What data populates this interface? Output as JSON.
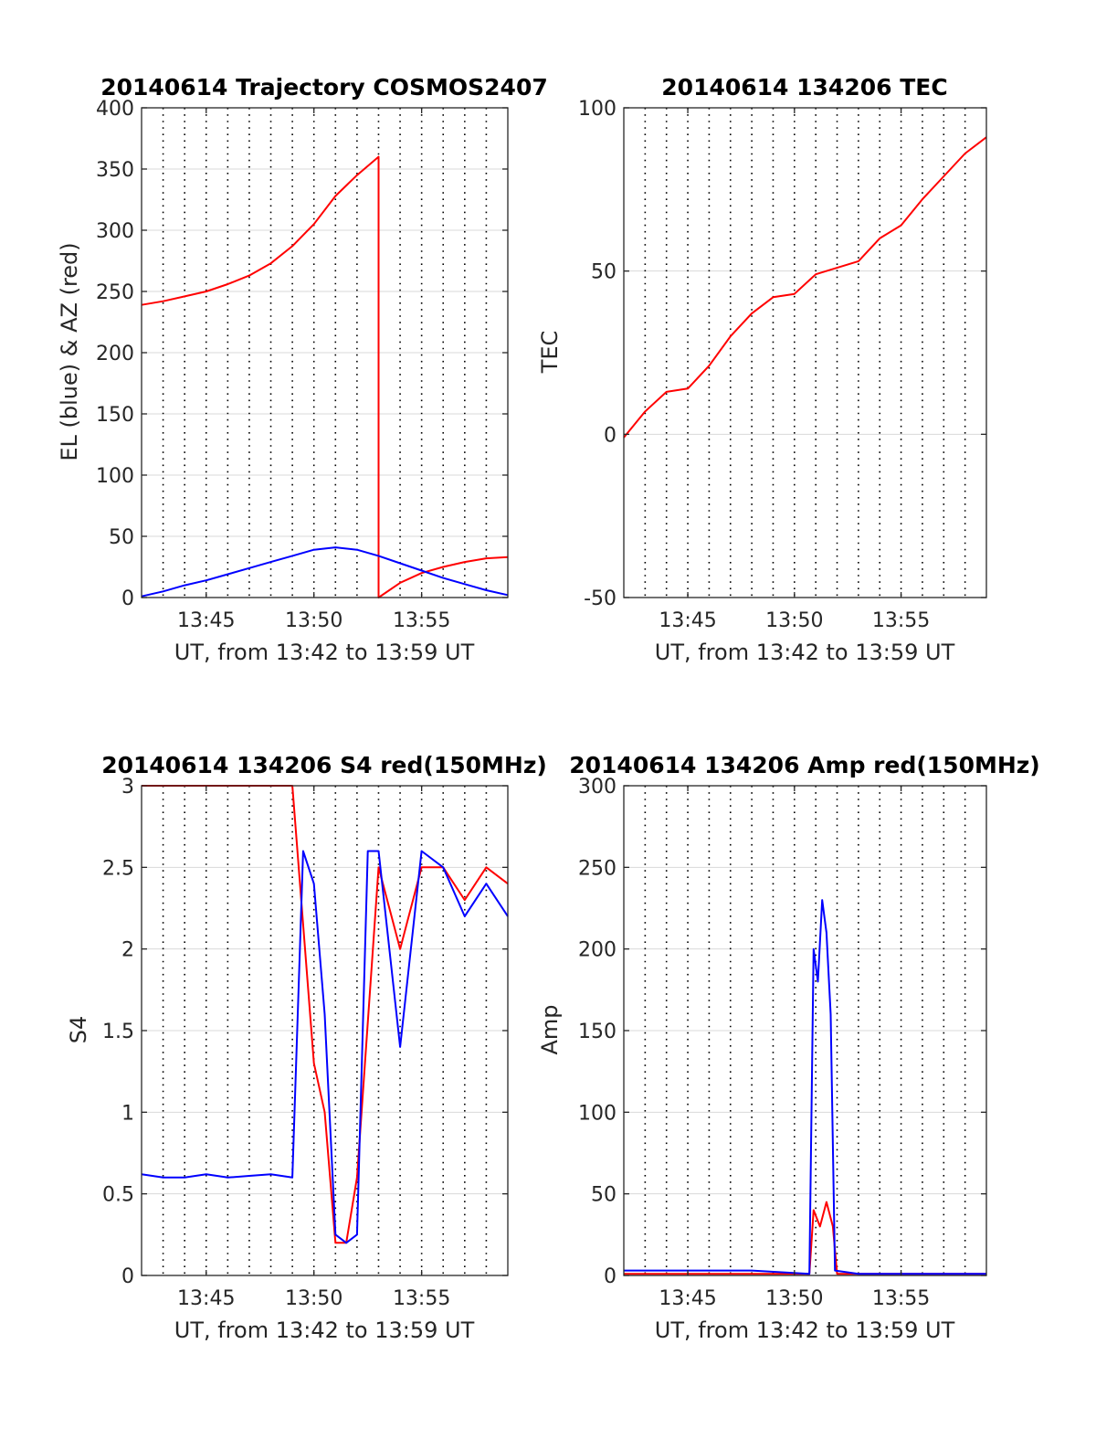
{
  "figure": {
    "colors": {
      "red": "#ff0000",
      "blue": "#0000ff",
      "axis": "#262626",
      "grid": "#d9d9d9",
      "vgrid": "#000000"
    }
  },
  "chart_data": [
    {
      "type": "line",
      "title": "20140614 Trajectory COSMOS2407",
      "xlabel": "UT, from 13:42 to 13:59 UT",
      "ylabel": "EL (blue) & AZ (red)",
      "xlim": [
        "13:42",
        "13:59"
      ],
      "ylim": [
        0,
        400
      ],
      "x_ticks": [
        "13:45",
        "13:50",
        "13:55"
      ],
      "y_ticks": [
        "0",
        "50",
        "100",
        "150",
        "200",
        "250",
        "300",
        "350",
        "400"
      ],
      "grid": true,
      "series": [
        {
          "color": "red",
          "x": [
            "13:42",
            "13:43",
            "13:44",
            "13:45",
            "13:46",
            "13:47",
            "13:48",
            "13:49",
            "13:50",
            "13:51",
            "13:52",
            "13:53",
            "13:53",
            "13:54",
            "13:55",
            "13:56",
            "13:57",
            "13:58",
            "13:59"
          ],
          "y": [
            239,
            242,
            246,
            250,
            256,
            263,
            273,
            287,
            305,
            328,
            345,
            360,
            0,
            12,
            20,
            25,
            29,
            32,
            33
          ]
        },
        {
          "color": "blue",
          "x": [
            "13:42",
            "13:43",
            "13:44",
            "13:45",
            "13:46",
            "13:47",
            "13:48",
            "13:49",
            "13:50",
            "13:51",
            "13:52",
            "13:53",
            "13:54",
            "13:55",
            "13:56",
            "13:57",
            "13:58",
            "13:59"
          ],
          "y": [
            1,
            5,
            10,
            14,
            19,
            24,
            29,
            34,
            39,
            41,
            39,
            34,
            28,
            22,
            16,
            11,
            6,
            2
          ]
        }
      ]
    },
    {
      "type": "line",
      "title": "20140614 134206 TEC",
      "xlabel": "UT, from 13:42 to 13:59 UT",
      "ylabel": "TEC",
      "xlim": [
        "13:42",
        "13:59"
      ],
      "ylim": [
        -50,
        100
      ],
      "x_ticks": [
        "13:45",
        "13:50",
        "13:55"
      ],
      "y_ticks": [
        "-50",
        "0",
        "50",
        "100"
      ],
      "grid": true,
      "series": [
        {
          "color": "red",
          "x": [
            "13:42",
            "13:43",
            "13:44",
            "13:45",
            "13:46",
            "13:47",
            "13:48",
            "13:49",
            "13:50",
            "13:51",
            "13:52",
            "13:53",
            "13:54",
            "13:55",
            "13:56",
            "13:57",
            "13:58",
            "13:59"
          ],
          "y": [
            -1,
            7,
            13,
            14,
            21,
            30,
            37,
            42,
            43,
            49,
            51,
            53,
            60,
            64,
            72,
            79,
            86,
            91
          ]
        }
      ]
    },
    {
      "type": "line",
      "title": "20140614 134206 S4 red(150MHz)",
      "xlabel": "UT, from 13:42 to 13:59 UT",
      "ylabel": "S4",
      "xlim": [
        "13:42",
        "13:59"
      ],
      "ylim": [
        0,
        3
      ],
      "x_ticks": [
        "13:45",
        "13:50",
        "13:55"
      ],
      "y_ticks": [
        "0",
        "0.5",
        "1",
        "1.5",
        "2",
        "2.5",
        "3"
      ],
      "grid": true,
      "series": [
        {
          "color": "red",
          "x": [
            "13:42",
            "13:43",
            "13:44",
            "13:45",
            "13:46",
            "13:47",
            "13:48",
            "13:49",
            "13:50",
            "13:50.5",
            "13:51",
            "13:51.5",
            "13:52",
            "13:53",
            "13:54",
            "13:55",
            "13:56",
            "13:57",
            "13:58",
            "13:59"
          ],
          "y": [
            3,
            3,
            3,
            3,
            3,
            3,
            3,
            3,
            1.3,
            1.0,
            0.2,
            0.2,
            0.6,
            2.5,
            2.0,
            2.5,
            2.5,
            2.3,
            2.5,
            2.4
          ]
        },
        {
          "color": "blue",
          "x": [
            "13:42",
            "13:43",
            "13:44",
            "13:45",
            "13:46",
            "13:47",
            "13:48",
            "13:49",
            "13:49.5",
            "13:50",
            "13:50.5",
            "13:51",
            "13:51.5",
            "13:52",
            "13:52.5",
            "13:53",
            "13:54",
            "13:55",
            "13:56",
            "13:57",
            "13:58",
            "13:59"
          ],
          "y": [
            0.62,
            0.6,
            0.6,
            0.62,
            0.6,
            0.61,
            0.62,
            0.6,
            2.6,
            2.4,
            1.6,
            0.25,
            0.2,
            0.25,
            2.6,
            2.6,
            1.4,
            2.6,
            2.5,
            2.2,
            2.4,
            2.2
          ]
        }
      ]
    },
    {
      "type": "line",
      "title": "20140614 134206 Amp red(150MHz)",
      "xlabel": "UT, from 13:42 to 13:59 UT",
      "ylabel": "Amp",
      "xlim": [
        "13:42",
        "13:59"
      ],
      "ylim": [
        0,
        300
      ],
      "x_ticks": [
        "13:45",
        "13:50",
        "13:55"
      ],
      "y_ticks": [
        "0",
        "50",
        "100",
        "150",
        "200",
        "250",
        "300"
      ],
      "grid": true,
      "series": [
        {
          "color": "red",
          "x": [
            "13:42",
            "13:46",
            "13:50.7",
            "13:50.9",
            "13:51.2",
            "13:51.5",
            "13:51.8",
            "13:52",
            "13:59"
          ],
          "y": [
            1,
            1,
            1,
            40,
            30,
            45,
            30,
            1,
            1
          ]
        },
        {
          "color": "blue",
          "x": [
            "13:42",
            "13:44",
            "13:46",
            "13:48",
            "13:50.7",
            "13:50.9",
            "13:51.1",
            "13:51.3",
            "13:51.5",
            "13:51.7",
            "13:51.9",
            "13:53",
            "13:55",
            "13:57",
            "13:59"
          ],
          "y": [
            3,
            3,
            3,
            3,
            1,
            200,
            180,
            230,
            210,
            160,
            3,
            1,
            1,
            1,
            1
          ]
        }
      ]
    }
  ]
}
